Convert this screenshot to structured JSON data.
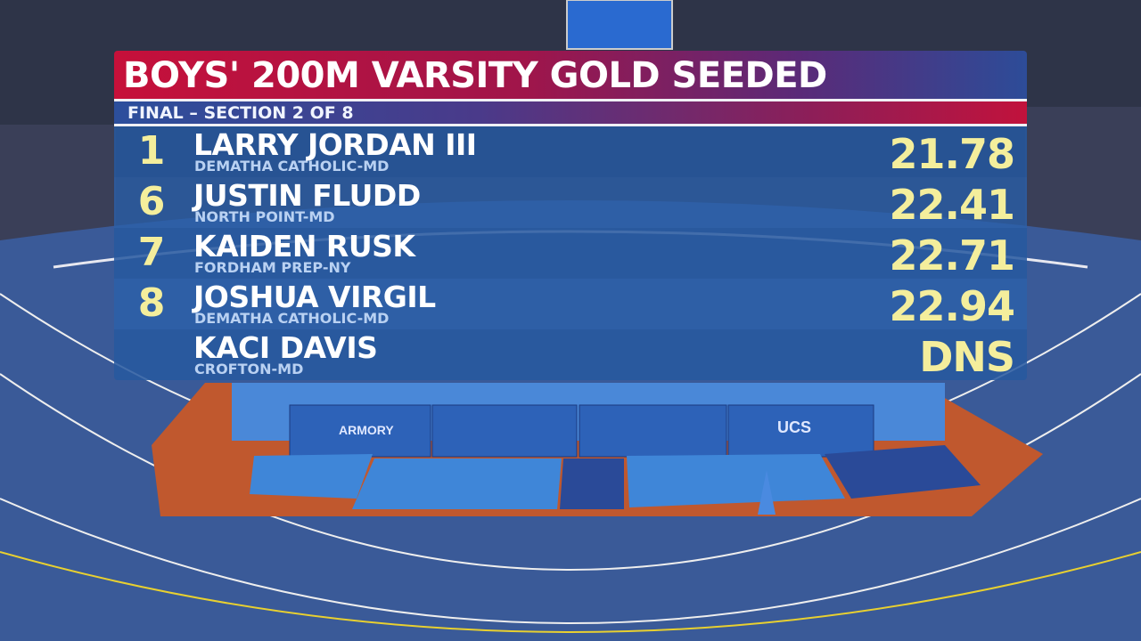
{
  "event": {
    "title": "BOYS' 200M VARSITY GOLD SEEDED",
    "subtitle": "FINAL – SECTION 2 OF 8"
  },
  "results": [
    {
      "place": "1",
      "name": "LARRY JORDAN III",
      "school": "DEMATHA CATHOLIC-MD",
      "mark": "21.78"
    },
    {
      "place": "6",
      "name": "JUSTIN FLUDD",
      "school": "NORTH POINT-MD",
      "mark": "22.41"
    },
    {
      "place": "7",
      "name": "KAIDEN RUSK",
      "school": "FORDHAM PREP-NY",
      "mark": "22.71"
    },
    {
      "place": "8",
      "name": "JOSHUA VIRGIL",
      "school": "DEMATHA CATHOLIC-MD",
      "mark": "22.94"
    },
    {
      "place": "",
      "name": "KACI DAVIS",
      "school": "CROFTON-MD",
      "mark": "DNS"
    }
  ],
  "venue_signage": {
    "mat_left": "ARMORY",
    "mat_right": "UCS"
  },
  "colors": {
    "title_red": "#c6103a",
    "row_blue": "#2658a0",
    "place_yellow": "#f4ee9c",
    "track_blue": "#3a5a98",
    "infield_orange": "#c0582e"
  }
}
